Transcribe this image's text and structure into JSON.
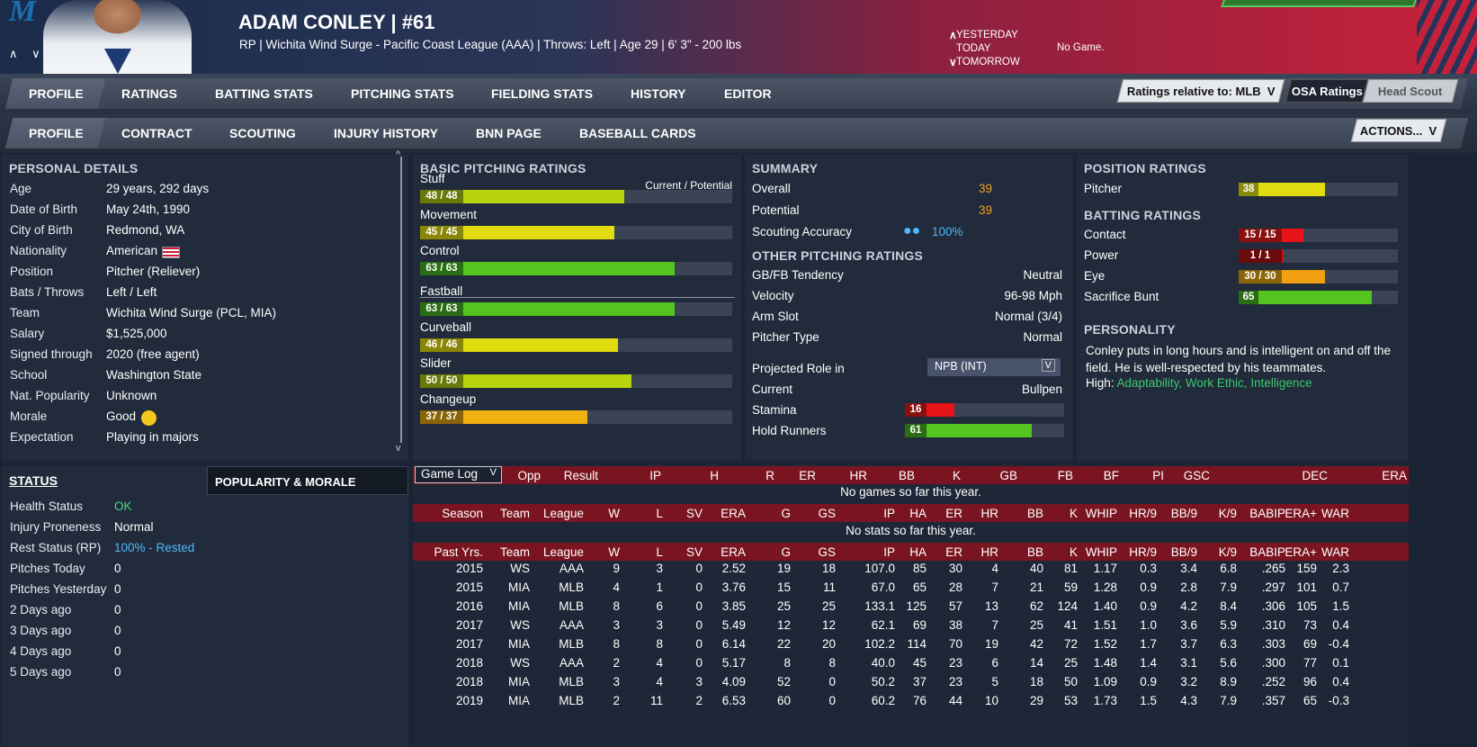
{
  "header": {
    "logo": "M",
    "nav_arrows": "∧ ∨",
    "name": "ADAM CONLEY  |  #61",
    "subtitle": "RP | Wichita Wind Surge - Pacific Coast League (AAA)  |  Throws: Left  |  Age 29  |  6' 3\" - 200 lbs",
    "day_prev_arrow": "∧",
    "day_next_arrow": "∨",
    "yesterday": "YESTERDAY",
    "today": "TODAY",
    "tomorrow": "TOMORROW",
    "game_status": "No Game."
  },
  "tabs_main": [
    "PROFILE",
    "RATINGS",
    "BATTING STATS",
    "PITCHING STATS",
    "FIELDING STATS",
    "HISTORY",
    "EDITOR"
  ],
  "tabs_sub": [
    "PROFILE",
    "CONTRACT",
    "SCOUTING",
    "INJURY HISTORY",
    "BNN PAGE",
    "BASEBALL CARDS"
  ],
  "controls": {
    "ratings_relative": "Ratings relative to: MLB",
    "osa": "OSA Ratings",
    "head_scout": "Head Scout",
    "actions": "ACTIONS...",
    "dropdown_glyph": "V"
  },
  "personal": {
    "title": "PERSONAL DETAILS",
    "rows": [
      {
        "label": "Age",
        "value": "29 years, 292 days"
      },
      {
        "label": "Date of Birth",
        "value": "May 24th, 1990"
      },
      {
        "label": "City of Birth",
        "value": "Redmond, WA"
      },
      {
        "label": "Nationality",
        "value": "American"
      },
      {
        "label": "Position",
        "value": "Pitcher (Reliever)"
      },
      {
        "label": "Bats / Throws",
        "value": "Left / Left"
      },
      {
        "label": "Team",
        "value": "Wichita Wind Surge (PCL, MIA)"
      },
      {
        "label": "Salary",
        "value": "$1,525,000"
      },
      {
        "label": "Signed through",
        "value": "2020 (free agent)"
      },
      {
        "label": "School",
        "value": "Washington State"
      },
      {
        "label": "Nat. Popularity",
        "value": "Unknown"
      },
      {
        "label": "Morale",
        "value": "Good"
      },
      {
        "label": "Expectation",
        "value": "Playing in majors"
      }
    ]
  },
  "status": {
    "title": "STATUS",
    "tab2": "POPULARITY & MORALE",
    "rows": [
      {
        "label": "Health Status",
        "value": "OK",
        "color": "#4ade80"
      },
      {
        "label": "Injury Proneness",
        "value": "Normal",
        "color": "#ffffff"
      },
      {
        "label": "Rest Status (RP)",
        "value": "100% - Rested",
        "color": "#4fb8ff"
      },
      {
        "label": "Pitches Today",
        "value": "0",
        "color": "#ffffff"
      },
      {
        "label": "Pitches Yesterday",
        "value": "0",
        "color": "#ffffff"
      },
      {
        "label": "2 Days ago",
        "value": "0",
        "color": "#ffffff"
      },
      {
        "label": "3 Days ago",
        "value": "0",
        "color": "#ffffff"
      },
      {
        "label": "4 Days ago",
        "value": "0",
        "color": "#ffffff"
      },
      {
        "label": "5 Days ago",
        "value": "0",
        "color": "#ffffff"
      }
    ]
  },
  "basic": {
    "title": "BASIC PITCHING RATINGS",
    "cp": "Current / Potential",
    "items": [
      {
        "name": "Stuff",
        "text": "48 / 48",
        "value": 48,
        "color": "#b8d40c"
      },
      {
        "name": "Movement",
        "text": "45 / 45",
        "value": 45,
        "color": "#e0dc10"
      },
      {
        "name": "Control",
        "text": "63 / 63",
        "value": 63,
        "color": "#54c41e"
      },
      {
        "name": "Fastball",
        "text": "63 / 63",
        "value": 63,
        "color": "#54c41e"
      },
      {
        "name": "Curveball",
        "text": "46 / 46",
        "value": 46,
        "color": "#e0dc10"
      },
      {
        "name": "Slider",
        "text": "50 / 50",
        "value": 50,
        "color": "#b8d40c"
      },
      {
        "name": "Changeup",
        "text": "37 / 37",
        "value": 37,
        "color": "#f0b010"
      }
    ]
  },
  "summary": {
    "title": "SUMMARY",
    "overall_label": "Overall",
    "overall": "39",
    "potential_label": "Potential",
    "potential": "39",
    "accuracy_label": "Scouting Accuracy",
    "accuracy": "100%",
    "other_title": "OTHER PITCHING RATINGS",
    "other": [
      {
        "label": "GB/FB Tendency",
        "value": "Neutral"
      },
      {
        "label": "Velocity",
        "value": "96-98 Mph"
      },
      {
        "label": "Arm Slot",
        "value": "Normal (3/4)"
      },
      {
        "label": "Pitcher Type",
        "value": "Normal"
      }
    ],
    "proj_label": "Projected Role in",
    "proj_value": "NPB (INT)",
    "current_label": "Current",
    "current_value": "Bullpen",
    "stamina_label": "Stamina",
    "stamina": 16,
    "stamina_color": "#e8141a",
    "hold_label": "Hold Runners",
    "hold": 61,
    "hold_color": "#54c41e"
  },
  "position": {
    "title": "POSITION RATINGS",
    "pitcher_label": "Pitcher",
    "pitcher": 38,
    "pitcher_color": "#e0dc10",
    "batting_title": "BATTING RATINGS",
    "batting": [
      {
        "label": "Contact",
        "text": "15 / 15",
        "value": 15,
        "color": "#e8141a"
      },
      {
        "label": "Power",
        "text": "1 / 1",
        "value": 1,
        "color": "#c8141a"
      },
      {
        "label": "Eye",
        "text": "30 / 30",
        "value": 30,
        "color": "#f0a010"
      },
      {
        "label": "Sacrifice Bunt",
        "text": "65",
        "value": 65,
        "color": "#54c41e"
      }
    ],
    "personality_title": "PERSONALITY",
    "personality_text": "Conley puts in long hours and is intelligent on and off the field. He is well-respected by his teammates.",
    "high_label": "High:",
    "high_traits": "Adaptability, Work Ethic, Intelligence"
  },
  "gamelog": {
    "select": "Game Log",
    "headers": [
      "Opp",
      "Result",
      "IP",
      "H",
      "R",
      "ER",
      "HR",
      "BB",
      "K",
      "GB",
      "FB",
      "BF",
      "PI",
      "GSC",
      "DEC",
      "ERA"
    ],
    "empty": "No games so far this year."
  },
  "season": {
    "headers": [
      "Season",
      "Team",
      "League",
      "W",
      "L",
      "SV",
      "ERA",
      "G",
      "GS",
      "IP",
      "HA",
      "ER",
      "HR",
      "BB",
      "K",
      "WHIP",
      "HR/9",
      "BB/9",
      "K/9",
      "BABIP",
      "ERA+",
      "WAR"
    ],
    "empty": "No stats so far this year."
  },
  "past": {
    "headers": [
      "Past Yrs.",
      "Team",
      "League",
      "W",
      "L",
      "SV",
      "ERA",
      "G",
      "GS",
      "IP",
      "HA",
      "ER",
      "HR",
      "BB",
      "K",
      "WHIP",
      "HR/9",
      "BB/9",
      "K/9",
      "BABIP",
      "ERA+",
      "WAR"
    ],
    "rows": [
      [
        "2015",
        "WS",
        "AAA",
        "9",
        "3",
        "0",
        "2.52",
        "19",
        "18",
        "107.0",
        "85",
        "30",
        "4",
        "40",
        "81",
        "1.17",
        "0.3",
        "3.4",
        "6.8",
        ".265",
        "159",
        "2.3"
      ],
      [
        "2015",
        "MIA",
        "MLB",
        "4",
        "1",
        "0",
        "3.76",
        "15",
        "11",
        "67.0",
        "65",
        "28",
        "7",
        "21",
        "59",
        "1.28",
        "0.9",
        "2.8",
        "7.9",
        ".297",
        "101",
        "0.7"
      ],
      [
        "2016",
        "MIA",
        "MLB",
        "8",
        "6",
        "0",
        "3.85",
        "25",
        "25",
        "133.1",
        "125",
        "57",
        "13",
        "62",
        "124",
        "1.40",
        "0.9",
        "4.2",
        "8.4",
        ".306",
        "105",
        "1.5"
      ],
      [
        "2017",
        "WS",
        "AAA",
        "3",
        "3",
        "0",
        "5.49",
        "12",
        "12",
        "62.1",
        "69",
        "38",
        "7",
        "25",
        "41",
        "1.51",
        "1.0",
        "3.6",
        "5.9",
        ".310",
        "73",
        "0.4"
      ],
      [
        "2017",
        "MIA",
        "MLB",
        "8",
        "8",
        "0",
        "6.14",
        "22",
        "20",
        "102.2",
        "114",
        "70",
        "19",
        "42",
        "72",
        "1.52",
        "1.7",
        "3.7",
        "6.3",
        ".303",
        "69",
        "-0.4"
      ],
      [
        "2018",
        "WS",
        "AAA",
        "2",
        "4",
        "0",
        "5.17",
        "8",
        "8",
        "40.0",
        "45",
        "23",
        "6",
        "14",
        "25",
        "1.48",
        "1.4",
        "3.1",
        "5.6",
        ".300",
        "77",
        "0.1"
      ],
      [
        "2018",
        "MIA",
        "MLB",
        "3",
        "4",
        "3",
        "4.09",
        "52",
        "0",
        "50.2",
        "37",
        "23",
        "5",
        "18",
        "50",
        "1.09",
        "0.9",
        "3.2",
        "8.9",
        ".252",
        "96",
        "0.4"
      ],
      [
        "2019",
        "MIA",
        "MLB",
        "2",
        "11",
        "2",
        "6.53",
        "60",
        "0",
        "60.2",
        "76",
        "44",
        "10",
        "29",
        "53",
        "1.73",
        "1.5",
        "4.3",
        "7.9",
        ".357",
        "65",
        "-0.3"
      ]
    ]
  },
  "colors": {
    "accent_red": "#7a1420",
    "overall_orange": "#f0a020",
    "trait_green": "#3ec870",
    "scout_blue": "#4fb8ff"
  }
}
